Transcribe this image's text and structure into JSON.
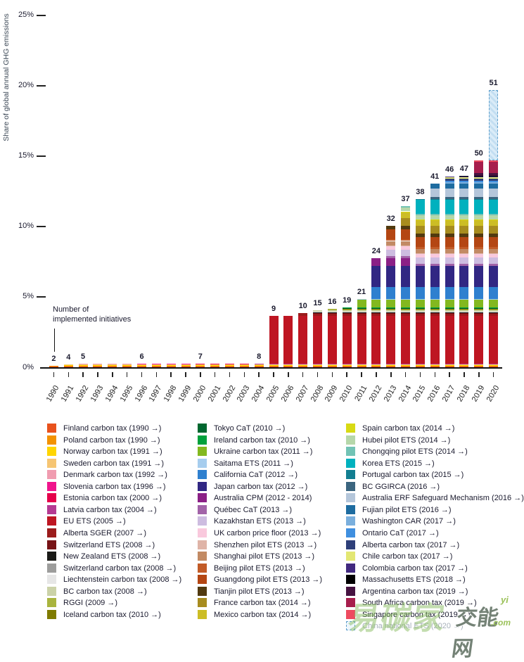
{
  "chart_data": {
    "type": "bar",
    "stacked": true,
    "ylabel": "Share of global annual GHG emissions",
    "ylim": [
      0,
      25
    ],
    "grid": false,
    "yticks": [
      {
        "value": 0,
        "label": "0%"
      },
      {
        "value": 5,
        "label": "5%"
      },
      {
        "value": 10,
        "label": "10%"
      },
      {
        "value": 15,
        "label": "15%"
      },
      {
        "value": 20,
        "label": "20%"
      },
      {
        "value": 25,
        "label": "25%"
      }
    ],
    "annotation": [
      "Number of",
      "implemented initiatives"
    ],
    "years": [
      1990,
      1991,
      1992,
      1993,
      1994,
      1995,
      1996,
      1997,
      1998,
      1999,
      2000,
      2001,
      2002,
      2003,
      2004,
      2005,
      2006,
      2007,
      2008,
      2009,
      2010,
      2011,
      2012,
      2013,
      2014,
      2015,
      2016,
      2017,
      2018,
      2019,
      2020
    ],
    "bar_count_labels": {
      "1990": "2",
      "1991": "4",
      "1992": "5",
      "1996": "6",
      "2000": "7",
      "2004": "8",
      "2005": "9",
      "2007": "10",
      "2008": "15",
      "2009": "16",
      "2010": "19",
      "2011": "21",
      "2012": "24",
      "2013": "32",
      "2014": "37",
      "2015": "38",
      "2016": "41",
      "2017": "46",
      "2018": "47",
      "2019": "50",
      "2020": "51"
    },
    "initiatives": [
      {
        "label": "Finland carbon tax (1990 →)",
        "color": "#E8521D",
        "start": 1990,
        "share": 0.08
      },
      {
        "label": "Poland carbon tax (1990 →)",
        "color": "#F39200",
        "start": 1990,
        "share": 0.05
      },
      {
        "label": "Norway carbon tax (1991 →)",
        "color": "#FFD500",
        "start": 1991,
        "share": 0.06
      },
      {
        "label": "Sweden carbon tax (1991 →)",
        "color": "#F6C573",
        "start": 1991,
        "share": 0.05
      },
      {
        "label": "Denmark carbon tax (1992 →)",
        "color": "#F09CB0",
        "start": 1992,
        "share": 0.02
      },
      {
        "label": "Slovenia carbon tax (1996 →)",
        "color": "#F0148C",
        "start": 1996,
        "share": 0.02
      },
      {
        "label": "Estonia carbon tax (2000 →)",
        "color": "#E5004B",
        "start": 2000,
        "share": 0.01
      },
      {
        "label": "Latvia carbon tax (2004 →)",
        "color": "#B53A92",
        "start": 2004,
        "share": 0.01
      },
      {
        "label": "EU ETS (2005 →)",
        "color": "#BE1622",
        "start": 2005,
        "share": 3.35
      },
      {
        "label": "Alberta SGER (2007 →)",
        "color": "#9B1C1C",
        "start": 2007,
        "share": 0.2
      },
      {
        "label": "Switzerland ETS (2008 →)",
        "color": "#771316",
        "start": 2008,
        "share": 0.02
      },
      {
        "label": "New Zealand ETS (2008 →)",
        "color": "#1A1A17",
        "start": 2008,
        "share": 0.07
      },
      {
        "label": "Switzerland carbon tax (2008 →)",
        "color": "#9D9D9C",
        "start": 2008,
        "share": 0.03
      },
      {
        "label": "Liechtenstein carbon tax (2008 →)",
        "color": "#E6E6E6",
        "start": 2008,
        "share": 0.01
      },
      {
        "label": "BC carbon tax (2008 →)",
        "color": "#CBD2A8",
        "start": 2008,
        "share": 0.08
      },
      {
        "label": "RGGI (2009 →)",
        "color": "#A9B43E",
        "start": 2009,
        "share": 0.12
      },
      {
        "label": "Iceland carbon tax (2010 →)",
        "color": "#7F7B00",
        "start": 2010,
        "share": 0.01
      },
      {
        "label": "Tokyo CaT (2010 →)",
        "color": "#00672F",
        "start": 2010,
        "share": 0.02
      },
      {
        "label": "Ireland carbon tax (2010 →)",
        "color": "#00A13C",
        "start": 2010,
        "share": 0.04
      },
      {
        "label": "Ukraine carbon tax (2011 →)",
        "color": "#83B81F",
        "start": 2011,
        "share": 0.58
      },
      {
        "label": "Saitama ETS (2011 →)",
        "color": "#A6CDEE",
        "start": 2011,
        "share": 0.02
      },
      {
        "label": "California CaT (2012 →)",
        "color": "#2F80CF",
        "start": 2012,
        "share": 0.85
      },
      {
        "label": "Japan carbon tax (2012 →)",
        "color": "#312783",
        "start": 2012,
        "share": 1.5
      },
      {
        "label": "Australia CPM (2012 - 2014)",
        "color": "#8B2086",
        "start": 2012,
        "end": 2014,
        "share": 0.55
      },
      {
        "label": "Québec CaT (2013 →)",
        "color": "#A263A8",
        "start": 2013,
        "share": 0.15
      },
      {
        "label": "Kazakhstan ETS (2013 →)",
        "color": "#CDBCE0",
        "start": 2013,
        "share": 0.45
      },
      {
        "label": "UK carbon price floor (2013 →)",
        "color": "#F9C9DD",
        "start": 2013,
        "share": 0.25
      },
      {
        "label": "Shenzhen pilot ETS (2013 →)",
        "color": "#DFB4A7",
        "start": 2013,
        "share": 0.08
      },
      {
        "label": "Shanghai pilot ETS (2013 →)",
        "color": "#C28A64",
        "start": 2013,
        "share": 0.3
      },
      {
        "label": "Beijing pilot ETS (2013 →)",
        "color": "#C25B27",
        "start": 2013,
        "share": 0.12
      },
      {
        "label": "Guangdong pilot ETS (2013 →)",
        "color": "#B44613",
        "start": 2013,
        "share": 0.7
      },
      {
        "label": "Tianjin pilot ETS (2013 →)",
        "color": "#513A10",
        "start": 2013,
        "share": 0.25
      },
      {
        "label": "France carbon tax (2014 →)",
        "color": "#A78C1F",
        "start": 2014,
        "share": 0.55
      },
      {
        "label": "Mexico carbon tax (2014 →)",
        "color": "#CCBD25",
        "start": 2014,
        "share": 0.45
      },
      {
        "label": "Spain carbon tax (2014 →)",
        "color": "#D8DA14",
        "start": 2014,
        "share": 0.03
      },
      {
        "label": "Hubei pilot ETS (2014 →)",
        "color": "#B6D7AA",
        "start": 2014,
        "share": 0.27
      },
      {
        "label": "Chongqing pilot ETS (2014 →)",
        "color": "#72C3B5",
        "start": 2014,
        "share": 0.1
      },
      {
        "label": "Korea ETS (2015 →)",
        "color": "#00B1BE",
        "start": 2015,
        "share": 1.0
      },
      {
        "label": "Portugal carbon tax (2015 →)",
        "color": "#127E91",
        "start": 2015,
        "share": 0.05
      },
      {
        "label": "BC GGIRCA (2016 →)",
        "color": "#3B657F",
        "start": 2016,
        "share": 0.15
      },
      {
        "label": "Australia ERF Safeguard Mechanism (2016 →)",
        "color": "#B4C6DA",
        "start": 2016,
        "share": 0.6
      },
      {
        "label": "Fujian pilot ETS (2016 →)",
        "color": "#1E6CA0",
        "start": 2016,
        "share": 0.35
      },
      {
        "label": "Washington CAR (2017 →)",
        "color": "#7AAFDD",
        "start": 2017,
        "share": 0.1
      },
      {
        "label": "Ontario CaT (2017 →)",
        "color": "#3F8FDF",
        "start": 2017,
        "share": 0.12
      },
      {
        "label": "Alberta carbon tax (2017 →)",
        "color": "#2E3F79",
        "start": 2017,
        "share": 0.15
      },
      {
        "label": "Chile carbon tax (2017 →)",
        "color": "#E3E773",
        "start": 2017,
        "share": 0.08
      },
      {
        "label": "Colombia carbon tax (2017 →)",
        "color": "#41297F",
        "start": 2017,
        "share": 0.05
      },
      {
        "label": "Massachusetts ETS (2018 →)",
        "color": "#000000",
        "start": 2018,
        "share": 0.05
      },
      {
        "label": "Argentina carbon tax (2019 →)",
        "color": "#461341",
        "start": 2019,
        "share": 0.2
      },
      {
        "label": "South Africa carbon tax (2019 →)",
        "color": "#A71E4D",
        "start": 2019,
        "share": 0.8
      },
      {
        "label": "Singapore carbon tax (2019 →)",
        "color": "#EE4B5F",
        "start": 2019,
        "share": 0.1
      },
      {
        "label": "China national ETS (2020 →)",
        "color": "#CFE6F5",
        "start": 2020,
        "share": 5.0,
        "china": true
      }
    ],
    "legend_column_sizes": [
      17,
      17,
      18
    ]
  },
  "watermark": {
    "big_text": "易碳家",
    "site_text": "交能网",
    "com_text": ".com",
    "yi_text": "yi"
  }
}
